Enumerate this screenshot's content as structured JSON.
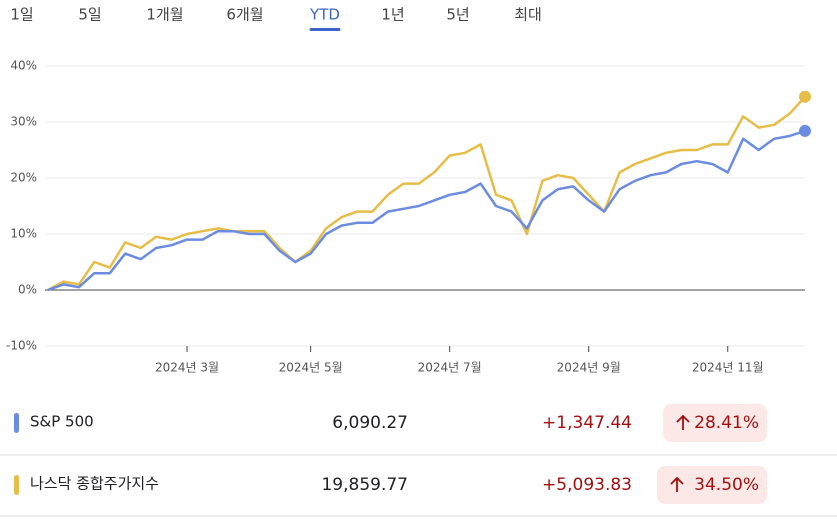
{
  "tabs": [
    {
      "label": "1일"
    },
    {
      "label": "5일"
    },
    {
      "label": "1개월"
    },
    {
      "label": "6개월"
    },
    {
      "label": "YTD",
      "selected": true
    },
    {
      "label": "1년"
    },
    {
      "label": "5년"
    },
    {
      "label": "최대"
    }
  ],
  "chart_data": {
    "type": "line",
    "categories": [
      null,
      null,
      null,
      null,
      null,
      null,
      null,
      null,
      null,
      "2024년 3월",
      null,
      null,
      null,
      null,
      null,
      null,
      null,
      "2024년 5월",
      null,
      null,
      null,
      null,
      null,
      null,
      null,
      null,
      "2024년 7월",
      null,
      null,
      null,
      null,
      null,
      null,
      null,
      null,
      "2024년 9월",
      null,
      null,
      null,
      null,
      null,
      null,
      null,
      null,
      "2024년 11월",
      null,
      null,
      null,
      null,
      null
    ],
    "series": [
      {
        "name": "S&P 500",
        "color": "#6b8ce0",
        "values": [
          0,
          1,
          0.5,
          3,
          3,
          6.5,
          5.5,
          7.5,
          8,
          9,
          9,
          10.5,
          10.5,
          10,
          10,
          7,
          5,
          6.5,
          10,
          11.5,
          12,
          12,
          14,
          14.5,
          15,
          16,
          17,
          17.5,
          19,
          15,
          14,
          11,
          16,
          18,
          18.5,
          16,
          14,
          18,
          19.5,
          20.5,
          21,
          22.5,
          23,
          22.5,
          21,
          27,
          25,
          27,
          27.5,
          28.41
        ]
      },
      {
        "name": "나스닥 종합주가지수",
        "color": "#e6bd47",
        "values": [
          0,
          1.5,
          1,
          5,
          4,
          8.5,
          7.5,
          9.5,
          9,
          10,
          10.5,
          11,
          10.5,
          10.5,
          10.5,
          7.5,
          5,
          7,
          11,
          13,
          14,
          14,
          17,
          19,
          19,
          21,
          24,
          24.5,
          26,
          17,
          16,
          10,
          19.5,
          20.5,
          20,
          17,
          14,
          21,
          22.5,
          23.5,
          24.5,
          25,
          25,
          26,
          26,
          31,
          29,
          29.5,
          31.5,
          34.5
        ]
      }
    ],
    "ylim": [
      -10,
      40
    ],
    "yticks": [
      {
        "value": -10,
        "label": "-10%"
      },
      {
        "value": 0,
        "label": "0%"
      },
      {
        "value": 10,
        "label": "10%"
      },
      {
        "value": 20,
        "label": "20%"
      },
      {
        "value": 30,
        "label": "30%"
      },
      {
        "value": 40,
        "label": "40%"
      }
    ],
    "grid": true
  },
  "table": {
    "rows": [
      {
        "name": "S&P 500",
        "price": "6,090.27",
        "change": "+1,347.44",
        "percent": "28.41%"
      },
      {
        "name": "나스닥 종합주가지수",
        "price": "19,859.77",
        "change": "+5,093.83",
        "percent": "34.50%"
      }
    ]
  }
}
